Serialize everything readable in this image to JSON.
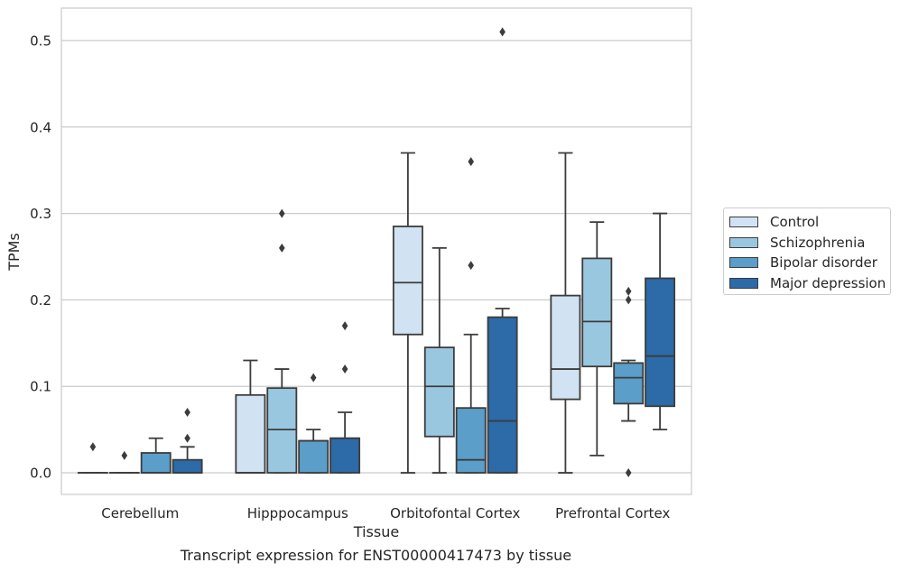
{
  "chart_data": {
    "type": "box",
    "xlabel": "Tissue",
    "ylabel": "TPMs",
    "ylim": [
      -0.025,
      0.5375
    ],
    "yticks": [
      0.0,
      0.1,
      0.2,
      0.3,
      0.4,
      0.5
    ],
    "ytick_labels": [
      "0.0",
      "0.1",
      "0.2",
      "0.3",
      "0.4",
      "0.5"
    ],
    "grid": "horizontal",
    "legend_position": "outside-right",
    "categories": [
      "Cerebellum",
      "Hipppocampus",
      "Orbitofontal Cortex",
      "Prefrontal Cortex"
    ],
    "series": [
      {
        "name": "Control",
        "color": "#d1e2f2",
        "boxes": [
          {
            "whisker_low": 0.0,
            "q1": 0.0,
            "median": 0.0,
            "q3": 0.0,
            "whisker_high": 0.0,
            "outliers": [
              0.03
            ]
          },
          {
            "whisker_low": 0.0,
            "q1": 0.0,
            "median": 0.0,
            "q3": 0.09,
            "whisker_high": 0.13,
            "outliers": []
          },
          {
            "whisker_low": 0.0,
            "q1": 0.16,
            "median": 0.22,
            "q3": 0.285,
            "whisker_high": 0.37,
            "outliers": []
          },
          {
            "whisker_low": 0.0,
            "q1": 0.085,
            "median": 0.12,
            "q3": 0.205,
            "whisker_high": 0.37,
            "outliers": []
          }
        ]
      },
      {
        "name": "Schizophrenia",
        "color": "#9ac7e0",
        "boxes": [
          {
            "whisker_low": 0.0,
            "q1": 0.0,
            "median": 0.0,
            "q3": 0.0,
            "whisker_high": 0.0,
            "outliers": [
              0.02
            ]
          },
          {
            "whisker_low": 0.0,
            "q1": 0.0,
            "median": 0.05,
            "q3": 0.098,
            "whisker_high": 0.12,
            "outliers": [
              0.3,
              0.26
            ]
          },
          {
            "whisker_low": 0.0,
            "q1": 0.042,
            "median": 0.1,
            "q3": 0.145,
            "whisker_high": 0.26,
            "outliers": []
          },
          {
            "whisker_low": 0.02,
            "q1": 0.123,
            "median": 0.175,
            "q3": 0.248,
            "whisker_high": 0.29,
            "outliers": []
          }
        ]
      },
      {
        "name": "Bipolar disorder",
        "color": "#5a9ec9",
        "boxes": [
          {
            "whisker_low": 0.0,
            "q1": 0.0,
            "median": 0.0,
            "q3": 0.023,
            "whisker_high": 0.04,
            "outliers": []
          },
          {
            "whisker_low": 0.0,
            "q1": 0.0,
            "median": 0.037,
            "q3": 0.037,
            "whisker_high": 0.05,
            "outliers": [
              0.11
            ]
          },
          {
            "whisker_low": 0.0,
            "q1": 0.0,
            "median": 0.015,
            "q3": 0.075,
            "whisker_high": 0.16,
            "outliers": [
              0.36,
              0.24
            ]
          },
          {
            "whisker_low": 0.06,
            "q1": 0.08,
            "median": 0.11,
            "q3": 0.127,
            "whisker_high": 0.13,
            "outliers": [
              0.21,
              0.2,
              0.0
            ]
          }
        ]
      },
      {
        "name": "Major depression",
        "color": "#2c6aa8",
        "boxes": [
          {
            "whisker_low": 0.0,
            "q1": 0.0,
            "median": 0.0,
            "q3": 0.015,
            "whisker_high": 0.03,
            "outliers": [
              0.07,
              0.04
            ]
          },
          {
            "whisker_low": 0.0,
            "q1": 0.0,
            "median": 0.04,
            "q3": 0.04,
            "whisker_high": 0.07,
            "outliers": [
              0.17,
              0.12
            ]
          },
          {
            "whisker_low": 0.0,
            "q1": 0.0,
            "median": 0.06,
            "q3": 0.18,
            "whisker_high": 0.19,
            "outliers": [
              0.51
            ]
          },
          {
            "whisker_low": 0.05,
            "q1": 0.077,
            "median": 0.135,
            "q3": 0.225,
            "whisker_high": 0.3,
            "outliers": []
          }
        ]
      }
    ],
    "caption": "Transcript expression for ENST00000417473 by tissue"
  }
}
